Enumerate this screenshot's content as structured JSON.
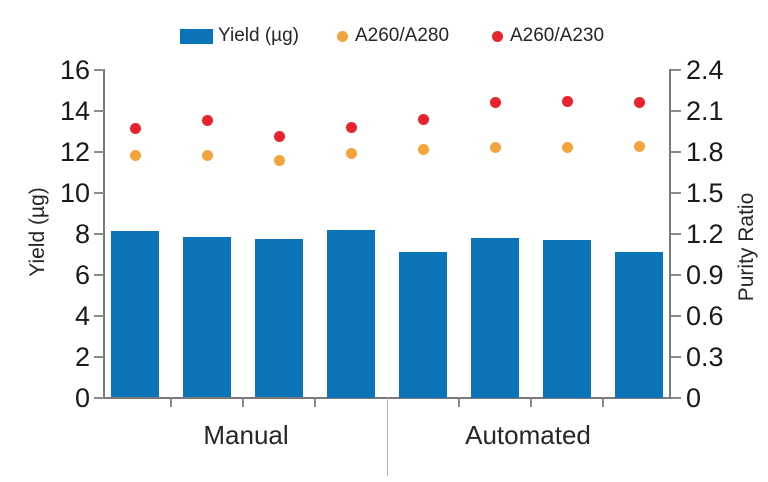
{
  "legend": {
    "items": [
      {
        "label": "Yield (µg)",
        "marker": "square",
        "color": "#0b74b8"
      },
      {
        "label": "A260/A280",
        "marker": "dot",
        "color": "#f4a43c"
      },
      {
        "label": "A260/A230",
        "marker": "dot",
        "color": "#e8232b"
      }
    ]
  },
  "chart_data": {
    "type": "combo (bar + scatter, dual y-axis)",
    "groups": [
      {
        "label": "Manual",
        "count": 4
      },
      {
        "label": "Automated",
        "count": 4
      }
    ],
    "series": [
      {
        "name": "Yield (µg)",
        "type": "bar",
        "axis": "left",
        "color": "#0b74b8",
        "values": [
          8.15,
          7.85,
          7.75,
          8.2,
          7.1,
          7.8,
          7.7,
          7.1
        ]
      },
      {
        "name": "A260/A280",
        "type": "scatter",
        "axis": "right",
        "color": "#f4a43c",
        "values": [
          1.77,
          1.77,
          1.74,
          1.79,
          1.82,
          1.83,
          1.83,
          1.84
        ]
      },
      {
        "name": "A260/A230",
        "type": "scatter",
        "axis": "right",
        "color": "#e8232b",
        "values": [
          1.97,
          2.03,
          1.91,
          1.98,
          2.04,
          2.16,
          2.17,
          2.16
        ]
      }
    ],
    "left_axis": {
      "title": "Yield (µg)",
      "min": 0,
      "max": 16,
      "tick_step": 2,
      "tick_values": [
        0,
        2,
        4,
        6,
        8,
        10,
        12,
        14,
        16
      ],
      "tick_labels": [
        "0",
        "2",
        "4",
        "6",
        "8",
        "10",
        "12",
        "14",
        "16"
      ]
    },
    "right_axis": {
      "title": "Purity Ratio",
      "min": 0,
      "max": 2.4,
      "tick_step": 0.3,
      "tick_values": [
        0,
        0.3,
        0.6,
        0.9,
        1.2,
        1.5,
        1.8,
        2.1,
        2.4
      ],
      "tick_labels": [
        "0",
        "0.3",
        "0.6",
        "0.9",
        "1.2",
        "1.5",
        "1.8",
        "2.1",
        "2.4"
      ]
    },
    "grid": false,
    "legend_position": "top"
  }
}
